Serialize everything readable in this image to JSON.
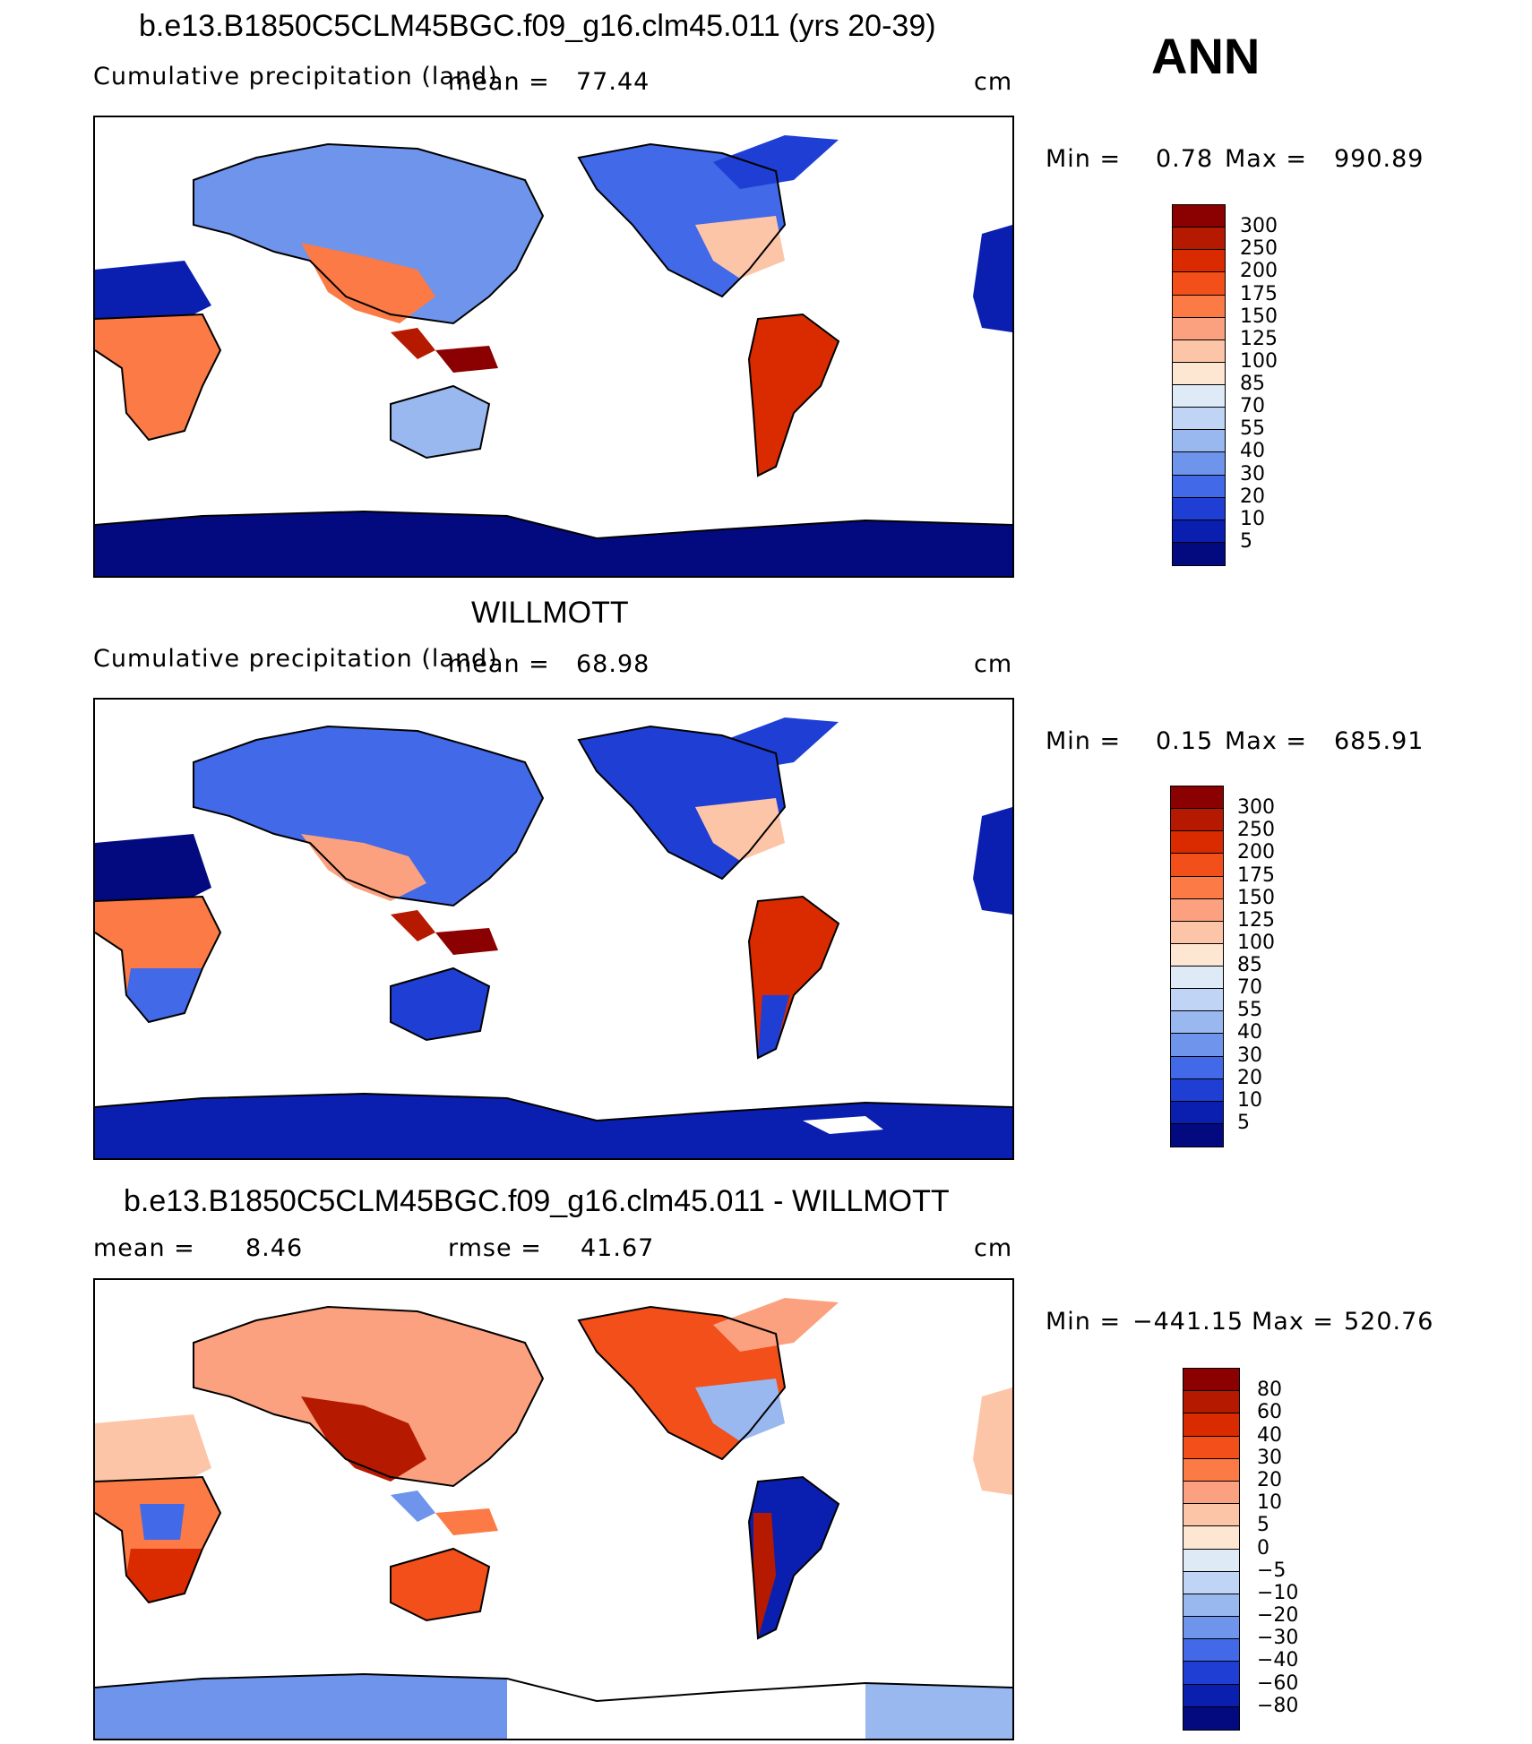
{
  "season": "ANN",
  "panels": [
    {
      "title": "b.e13.B1850C5CLM45BGC.f09_g16.clm45.011 (yrs 20-39)",
      "variable": "Cumulative precipitation (land)",
      "mean_label": "mean =",
      "mean_value": "77.44",
      "units": "cm",
      "min_label": "Min =",
      "min_value": "0.78",
      "max_label": "Max =",
      "max_value": "990.89",
      "colorbar_labels": [
        "300",
        "250",
        "200",
        "175",
        "150",
        "125",
        "100",
        "85",
        "70",
        "55",
        "40",
        "30",
        "20",
        "10",
        "5"
      ]
    },
    {
      "title": "WILLMOTT",
      "variable": "Cumulative precipitation (land)",
      "mean_label": "mean =",
      "mean_value": "68.98",
      "units": "cm",
      "min_label": "Min =",
      "min_value": "0.15",
      "max_label": "Max =",
      "max_value": "685.91",
      "colorbar_labels": [
        "300",
        "250",
        "200",
        "175",
        "150",
        "125",
        "100",
        "85",
        "70",
        "55",
        "40",
        "30",
        "20",
        "10",
        "5"
      ]
    },
    {
      "title": "b.e13.B1850C5CLM45BGC.f09_g16.clm45.011 - WILLMOTT",
      "mean_label": "mean =",
      "mean_value": "8.46",
      "rmse_label": "rmse =",
      "rmse_value": "41.67",
      "units": "cm",
      "min_label": "Min =",
      "min_value": "−441.15",
      "max_label": "Max =",
      "max_value": "520.76",
      "colorbar_labels": [
        "80",
        "60",
        "40",
        "30",
        "20",
        "10",
        "5",
        "0",
        "−5",
        "−10",
        "−20",
        "−30",
        "−40",
        "−60",
        "−80"
      ]
    }
  ],
  "colors": {
    "precip_scale": [
      "#8b0000",
      "#b51a00",
      "#d92a00",
      "#f24f1a",
      "#fb7a45",
      "#fca17f",
      "#fdc5a8",
      "#fde6d2",
      "#deebf7",
      "#c0d4f5",
      "#9ab8f0",
      "#6f94ec",
      "#4169e8",
      "#1f3fd4",
      "#0a1fb0",
      "#030a80"
    ],
    "diff_scale": [
      "#8b0000",
      "#b51a00",
      "#d92a00",
      "#f24f1a",
      "#fb7a45",
      "#fca17f",
      "#fdc5a8",
      "#fde6d2",
      "#deebf7",
      "#c0d4f5",
      "#9ab8f0",
      "#6f94ec",
      "#4169e8",
      "#1f3fd4",
      "#0a1fb0",
      "#030a80"
    ]
  },
  "chart_data": [
    {
      "type": "heatmap",
      "title": "b.e13.B1850C5CLM45BGC.f09_g16.clm45.011 (yrs 20-39)",
      "subtitle": "Cumulative precipitation (land)",
      "units": "cm",
      "mean": 77.44,
      "min": 0.78,
      "max": 990.89,
      "contour_levels": [
        5,
        10,
        20,
        30,
        40,
        55,
        70,
        85,
        100,
        125,
        150,
        175,
        200,
        250,
        300
      ]
    },
    {
      "type": "heatmap",
      "title": "WILLMOTT",
      "subtitle": "Cumulative precipitation (land)",
      "units": "cm",
      "mean": 68.98,
      "min": 0.15,
      "max": 685.91,
      "contour_levels": [
        5,
        10,
        20,
        30,
        40,
        55,
        70,
        85,
        100,
        125,
        150,
        175,
        200,
        250,
        300
      ]
    },
    {
      "type": "heatmap",
      "title": "b.e13.B1850C5CLM45BGC.f09_g16.clm45.011 - WILLMOTT",
      "units": "cm",
      "mean": 8.46,
      "rmse": 41.67,
      "min": -441.15,
      "max": 520.76,
      "contour_levels": [
        -80,
        -60,
        -40,
        -30,
        -20,
        -10,
        -5,
        0,
        5,
        10,
        20,
        30,
        40,
        60,
        80
      ]
    }
  ]
}
